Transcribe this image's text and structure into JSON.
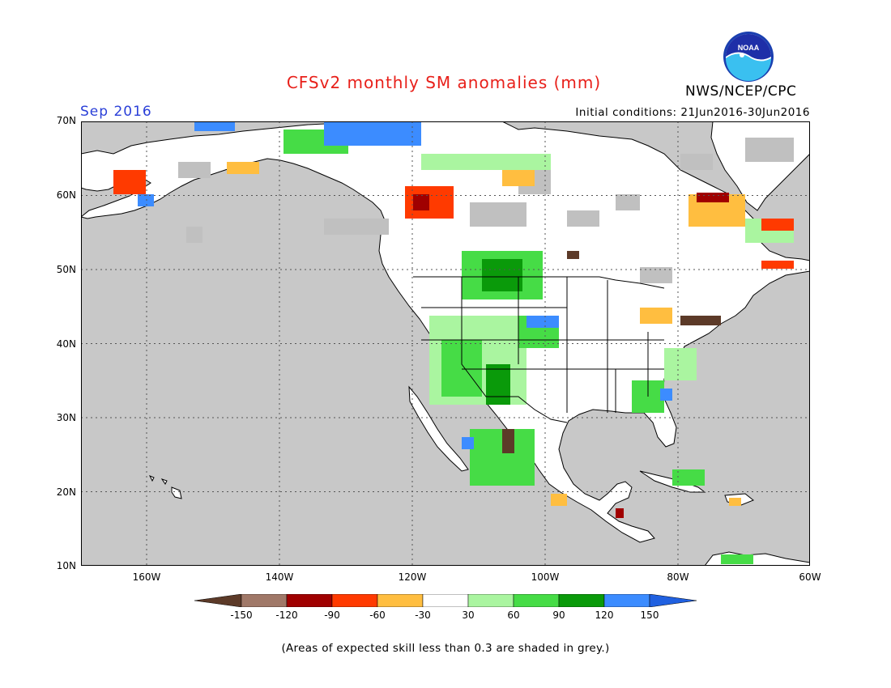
{
  "header": {
    "title": "CFSv2 monthly SM anomalies (mm)",
    "month": "Sep 2016",
    "initial_conditions": "Initial conditions: 21Jun2016-30Jun2016",
    "agency": "NWS/NCEP/CPC",
    "logo_text": "NOAA"
  },
  "map": {
    "lat_labels": [
      "70N",
      "60N",
      "50N",
      "40N",
      "30N",
      "20N",
      "10N"
    ],
    "lon_labels": [
      "160W",
      "140W",
      "120W",
      "100W",
      "80W",
      "60W"
    ],
    "colors": {
      "ocean": "#c8c8c8",
      "land": "#ffffff",
      "grey_skill": "#c0c0c0"
    }
  },
  "legend": {
    "bins": [
      {
        "color": "#5c3a28"
      },
      {
        "color": "#a07868"
      },
      {
        "color": "#a00000"
      },
      {
        "color": "#ff3a00"
      },
      {
        "color": "#ffbe40"
      },
      {
        "color": "#ffffff"
      },
      {
        "color": "#aaf5a0"
      },
      {
        "color": "#46dc46"
      },
      {
        "color": "#0a9a0a"
      },
      {
        "color": "#3c8cff"
      },
      {
        "color": "#2060e0"
      }
    ],
    "tick_labels": [
      "-150",
      "-120",
      "-90",
      "-60",
      "-30",
      "30",
      "60",
      "90",
      "120",
      "150"
    ]
  },
  "footnote": "(Areas of expected skill less than 0.3 are shaded in grey.)"
}
